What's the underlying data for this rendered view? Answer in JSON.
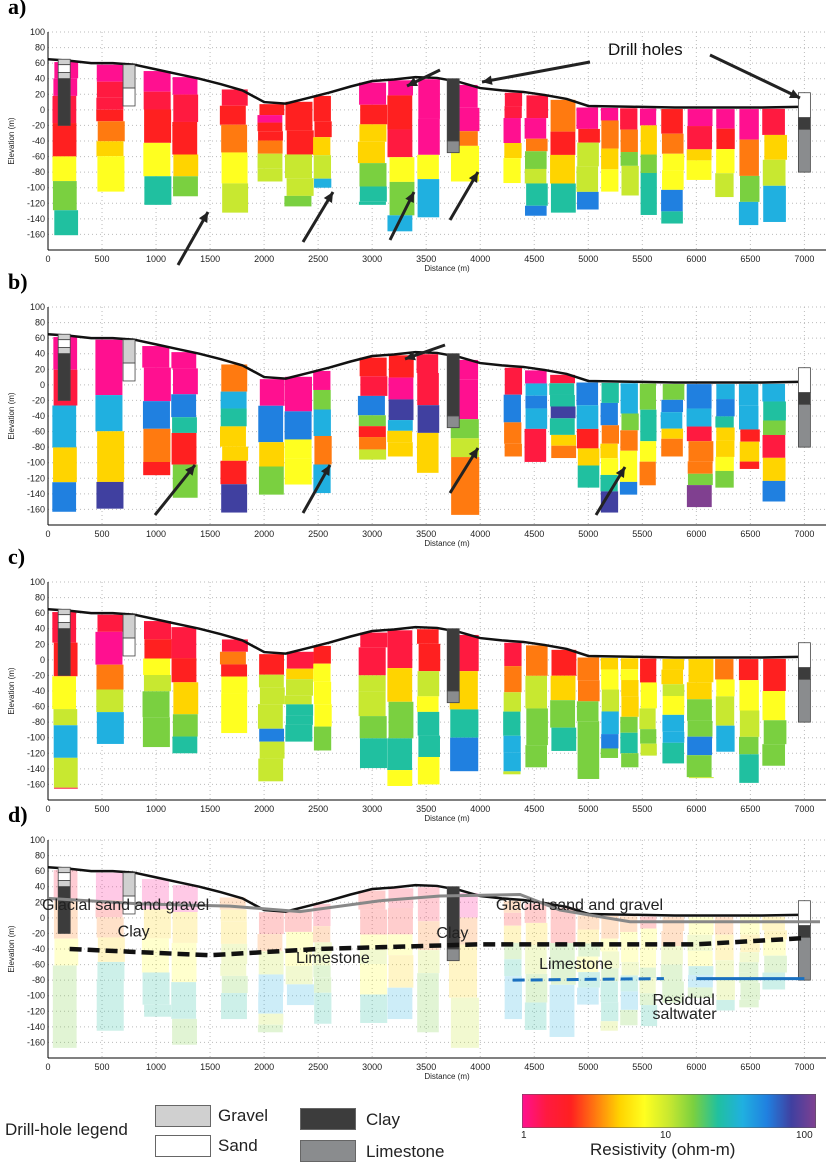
{
  "panels": [
    {
      "label": "a)",
      "annotation": "Drill holes",
      "geology": null
    },
    {
      "label": "b)",
      "annotation": "",
      "geology": null
    },
    {
      "label": "c)",
      "annotation": "",
      "geology": null
    },
    {
      "label": "d)",
      "annotation": "",
      "geology": {
        "units": [
          "Glacial sand and gravel",
          "Glacial sand and gravel",
          "Clay",
          "Clay",
          "Limestone",
          "Limestone",
          "Residual",
          "saltwater"
        ]
      }
    }
  ],
  "chart_data": {
    "type": "heatmap",
    "xlabel": "Distance (m)",
    "ylabel": "Elevation (m)",
    "xlim": [
      0,
      7200
    ],
    "ylim": [
      -180,
      100
    ],
    "xticks": [
      0,
      500,
      1000,
      1500,
      2000,
      2500,
      3000,
      3500,
      4000,
      4500,
      5000,
      5500,
      6000,
      6500,
      7000
    ],
    "yticks": [
      100,
      80,
      60,
      40,
      20,
      0,
      -20,
      -40,
      -60,
      -80,
      -100,
      -120,
      -140,
      -160
    ],
    "grid": true,
    "surface_profile": {
      "x": [
        0,
        200,
        400,
        600,
        800,
        1000,
        1200,
        1400,
        1600,
        1800,
        2000,
        2200,
        2400,
        2600,
        2800,
        3000,
        3200,
        3400,
        3600,
        3800,
        4000,
        4200,
        4400,
        4600,
        4800,
        5000,
        5400,
        5800,
        6200,
        6600,
        7000
      ],
      "elevation": [
        65,
        63,
        60,
        60,
        58,
        52,
        46,
        40,
        33,
        25,
        10,
        8,
        15,
        22,
        30,
        37,
        39,
        42,
        41,
        36,
        28,
        25,
        23,
        19,
        14,
        5,
        4,
        3,
        3,
        3,
        4
      ]
    },
    "drill_holes": [
      {
        "x": 150,
        "top": 65,
        "layers": [
          {
            "lith": "Gravel",
            "to": 58
          },
          {
            "lith": "Sand",
            "to": 48
          },
          {
            "lith": "Gravel",
            "to": 40
          },
          {
            "lith": "Clay",
            "to": -20
          }
        ]
      },
      {
        "x": 750,
        "top": 58,
        "layers": [
          {
            "lith": "Gravel",
            "to": 28
          },
          {
            "lith": "Sand",
            "to": 5
          }
        ]
      },
      {
        "x": 3750,
        "top": 40,
        "layers": [
          {
            "lith": "Clay",
            "to": -40
          },
          {
            "lith": "Limestone",
            "to": -55
          }
        ]
      },
      {
        "x": 7000,
        "top": 22,
        "layers": [
          {
            "lith": "Sand",
            "to": -10
          },
          {
            "lith": "Clay",
            "to": -25
          },
          {
            "lith": "Limestone",
            "to": -80
          }
        ]
      }
    ],
    "resistivity_colorbar": {
      "label": "Resistivity (ohm-m)",
      "scale": "log",
      "range": [
        1,
        100
      ],
      "ticks": [
        "1",
        "10",
        "100"
      ],
      "colors": [
        "#ff1090",
        "#ff1a40",
        "#ff2020",
        "#ff7a10",
        "#ffd400",
        "#ffff20",
        "#c8e830",
        "#7ad040",
        "#20c0a0",
        "#20b0e0",
        "#2080e0",
        "#4040a0",
        "#804090"
      ]
    },
    "drill_hole_legend": {
      "title": "Drill-hole legend",
      "items": [
        {
          "label": "Gravel",
          "color": "#d0d0d0"
        },
        {
          "label": "Sand",
          "color": "#ffffff"
        },
        {
          "label": "Clay",
          "color": "#3c3c3c"
        },
        {
          "label": "Limestone",
          "color": "#8a8c8e"
        }
      ]
    }
  }
}
